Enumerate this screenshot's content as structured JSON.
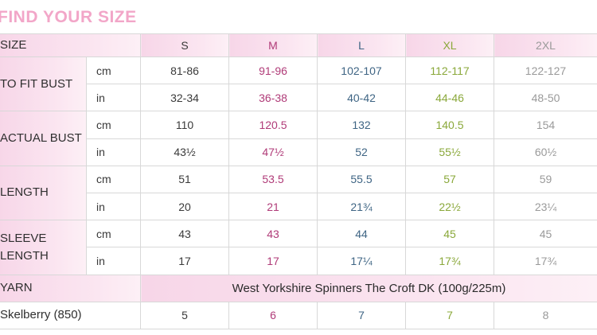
{
  "title": "FIND YOUR SIZE",
  "header": {
    "size_label": "SIZE",
    "sizes": [
      "S",
      "M",
      "L",
      "XL",
      "2XL"
    ]
  },
  "measurements": [
    {
      "label_lines": [
        "TO FIT BUST"
      ],
      "cm": [
        "81-86",
        "91-96",
        "102-107",
        "112-117",
        "122-127"
      ],
      "in": [
        "32-34",
        "36-38",
        "40-42",
        "44-46",
        "48-50"
      ]
    },
    {
      "label_lines": [
        "ACTUAL BUST"
      ],
      "cm": [
        "110",
        "120.5",
        "132",
        "140.5",
        "154"
      ],
      "in": [
        "43½",
        "47½",
        "52",
        "55½",
        "60½"
      ]
    },
    {
      "label_lines": [
        "LENGTH"
      ],
      "cm": [
        "51",
        "53.5",
        "55.5",
        "57",
        "59"
      ],
      "in": [
        "20",
        "21",
        "21¾",
        "22½",
        "23¼"
      ]
    },
    {
      "label_lines": [
        "SLEEVE",
        "LENGTH"
      ],
      "cm": [
        "43",
        "43",
        "44",
        "45",
        "45"
      ],
      "in": [
        "17",
        "17",
        "17¼",
        "17¾",
        "17¾"
      ]
    }
  ],
  "units": {
    "cm": "cm",
    "in": "in"
  },
  "yarn": {
    "label": "YARN",
    "name": "West Yorkshire Spinners The Croft DK (100g/225m)",
    "colour_label": "Skelberry (850)",
    "quantities": [
      "5",
      "6",
      "7",
      "7",
      "8"
    ]
  },
  "colors": {
    "S": "#3a3a3a",
    "M": "#b03b78",
    "L": "#3f6584",
    "XL": "#8aa83a",
    "2XL": "#9a9a9a",
    "title": "#f2a6c8",
    "label_bg": "#f7d6e8"
  }
}
